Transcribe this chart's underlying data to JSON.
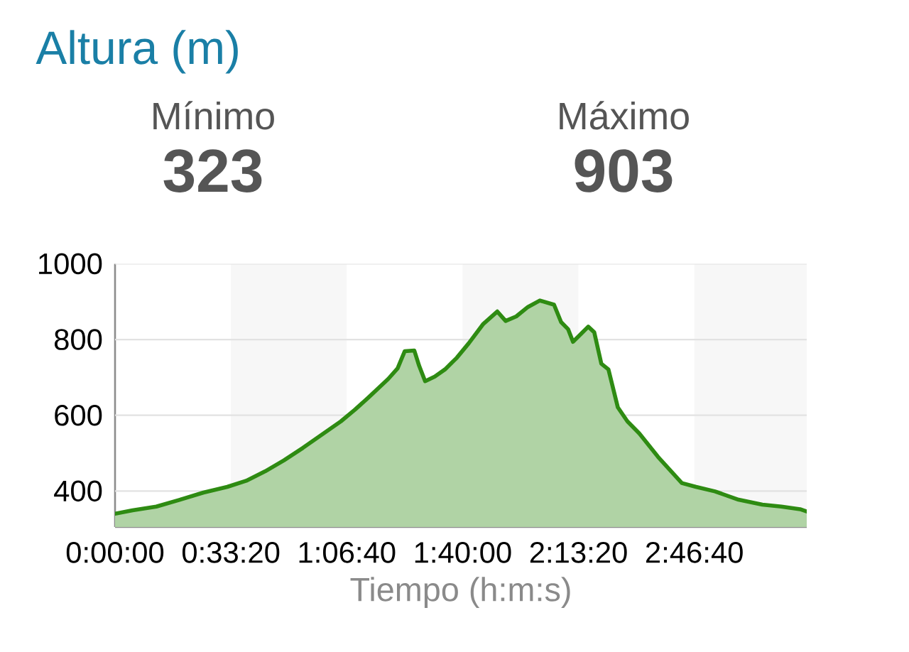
{
  "chart_data": {
    "type": "area",
    "title": "Altura (m)",
    "annotations": [
      "Mínimo",
      "323",
      "Máximo",
      "903"
    ],
    "xlabel": "Tiempo (h:m:s)",
    "x": [
      0,
      0.084,
      0.198,
      0.311,
      0.424,
      0.538,
      0.629,
      0.72,
      0.81,
      0.901,
      0.992,
      1.083,
      1.151,
      1.219,
      1.31,
      1.355,
      1.389,
      1.435,
      1.458,
      1.487,
      1.533,
      1.582,
      1.639,
      1.696,
      1.764,
      1.833,
      1.873,
      1.924,
      1.98,
      2.037,
      2.105,
      2.139,
      2.173,
      2.196,
      2.269,
      2.298,
      2.332,
      2.366,
      2.411,
      2.457,
      2.514,
      2.604,
      2.718,
      2.786,
      2.877,
      2.99,
      3.104,
      3.195,
      3.285,
      3.317
    ],
    "series": [
      {
        "color": "#2e8b12",
        "values": [
          340,
          349,
          359,
          377,
          396,
          411,
          427,
          452,
          481,
          514,
          549,
          584,
          615,
          649,
          696,
          724,
          769,
          771,
          731,
          690,
          702,
          721,
          752,
          790,
          840,
          874,
          849,
          861,
          886,
          903,
          892,
          846,
          827,
          794,
          834,
          819,
          736,
          721,
          621,
          584,
          552,
          490,
          421,
          411,
          399,
          377,
          364,
          359,
          352,
          346
        ]
      }
    ],
    "xlim": [
      0,
      3.317
    ],
    "ylim": [
      305,
      1000
    ],
    "xticks": [
      {
        "value": 0,
        "label": "0:00:00"
      },
      {
        "value": 0.5556,
        "label": "0:33:20"
      },
      {
        "value": 1.1111,
        "label": "1:06:40"
      },
      {
        "value": 1.6667,
        "label": "1:40:00"
      },
      {
        "value": 2.2222,
        "label": "2:13:20"
      },
      {
        "value": 2.7778,
        "label": "2:46:40"
      }
    ],
    "yticks": [
      400,
      600,
      800,
      1000
    ],
    "grid": "y",
    "bands": [
      {
        "axis": "x",
        "from": 0.5556,
        "to": 1.1111,
        "color": "#f7f7f7"
      },
      {
        "axis": "x",
        "from": 1.6667,
        "to": 2.2222,
        "color": "#f7f7f7"
      },
      {
        "axis": "x",
        "from": 2.7778,
        "to": 3.317,
        "color": "#f7f7f7"
      }
    ]
  }
}
